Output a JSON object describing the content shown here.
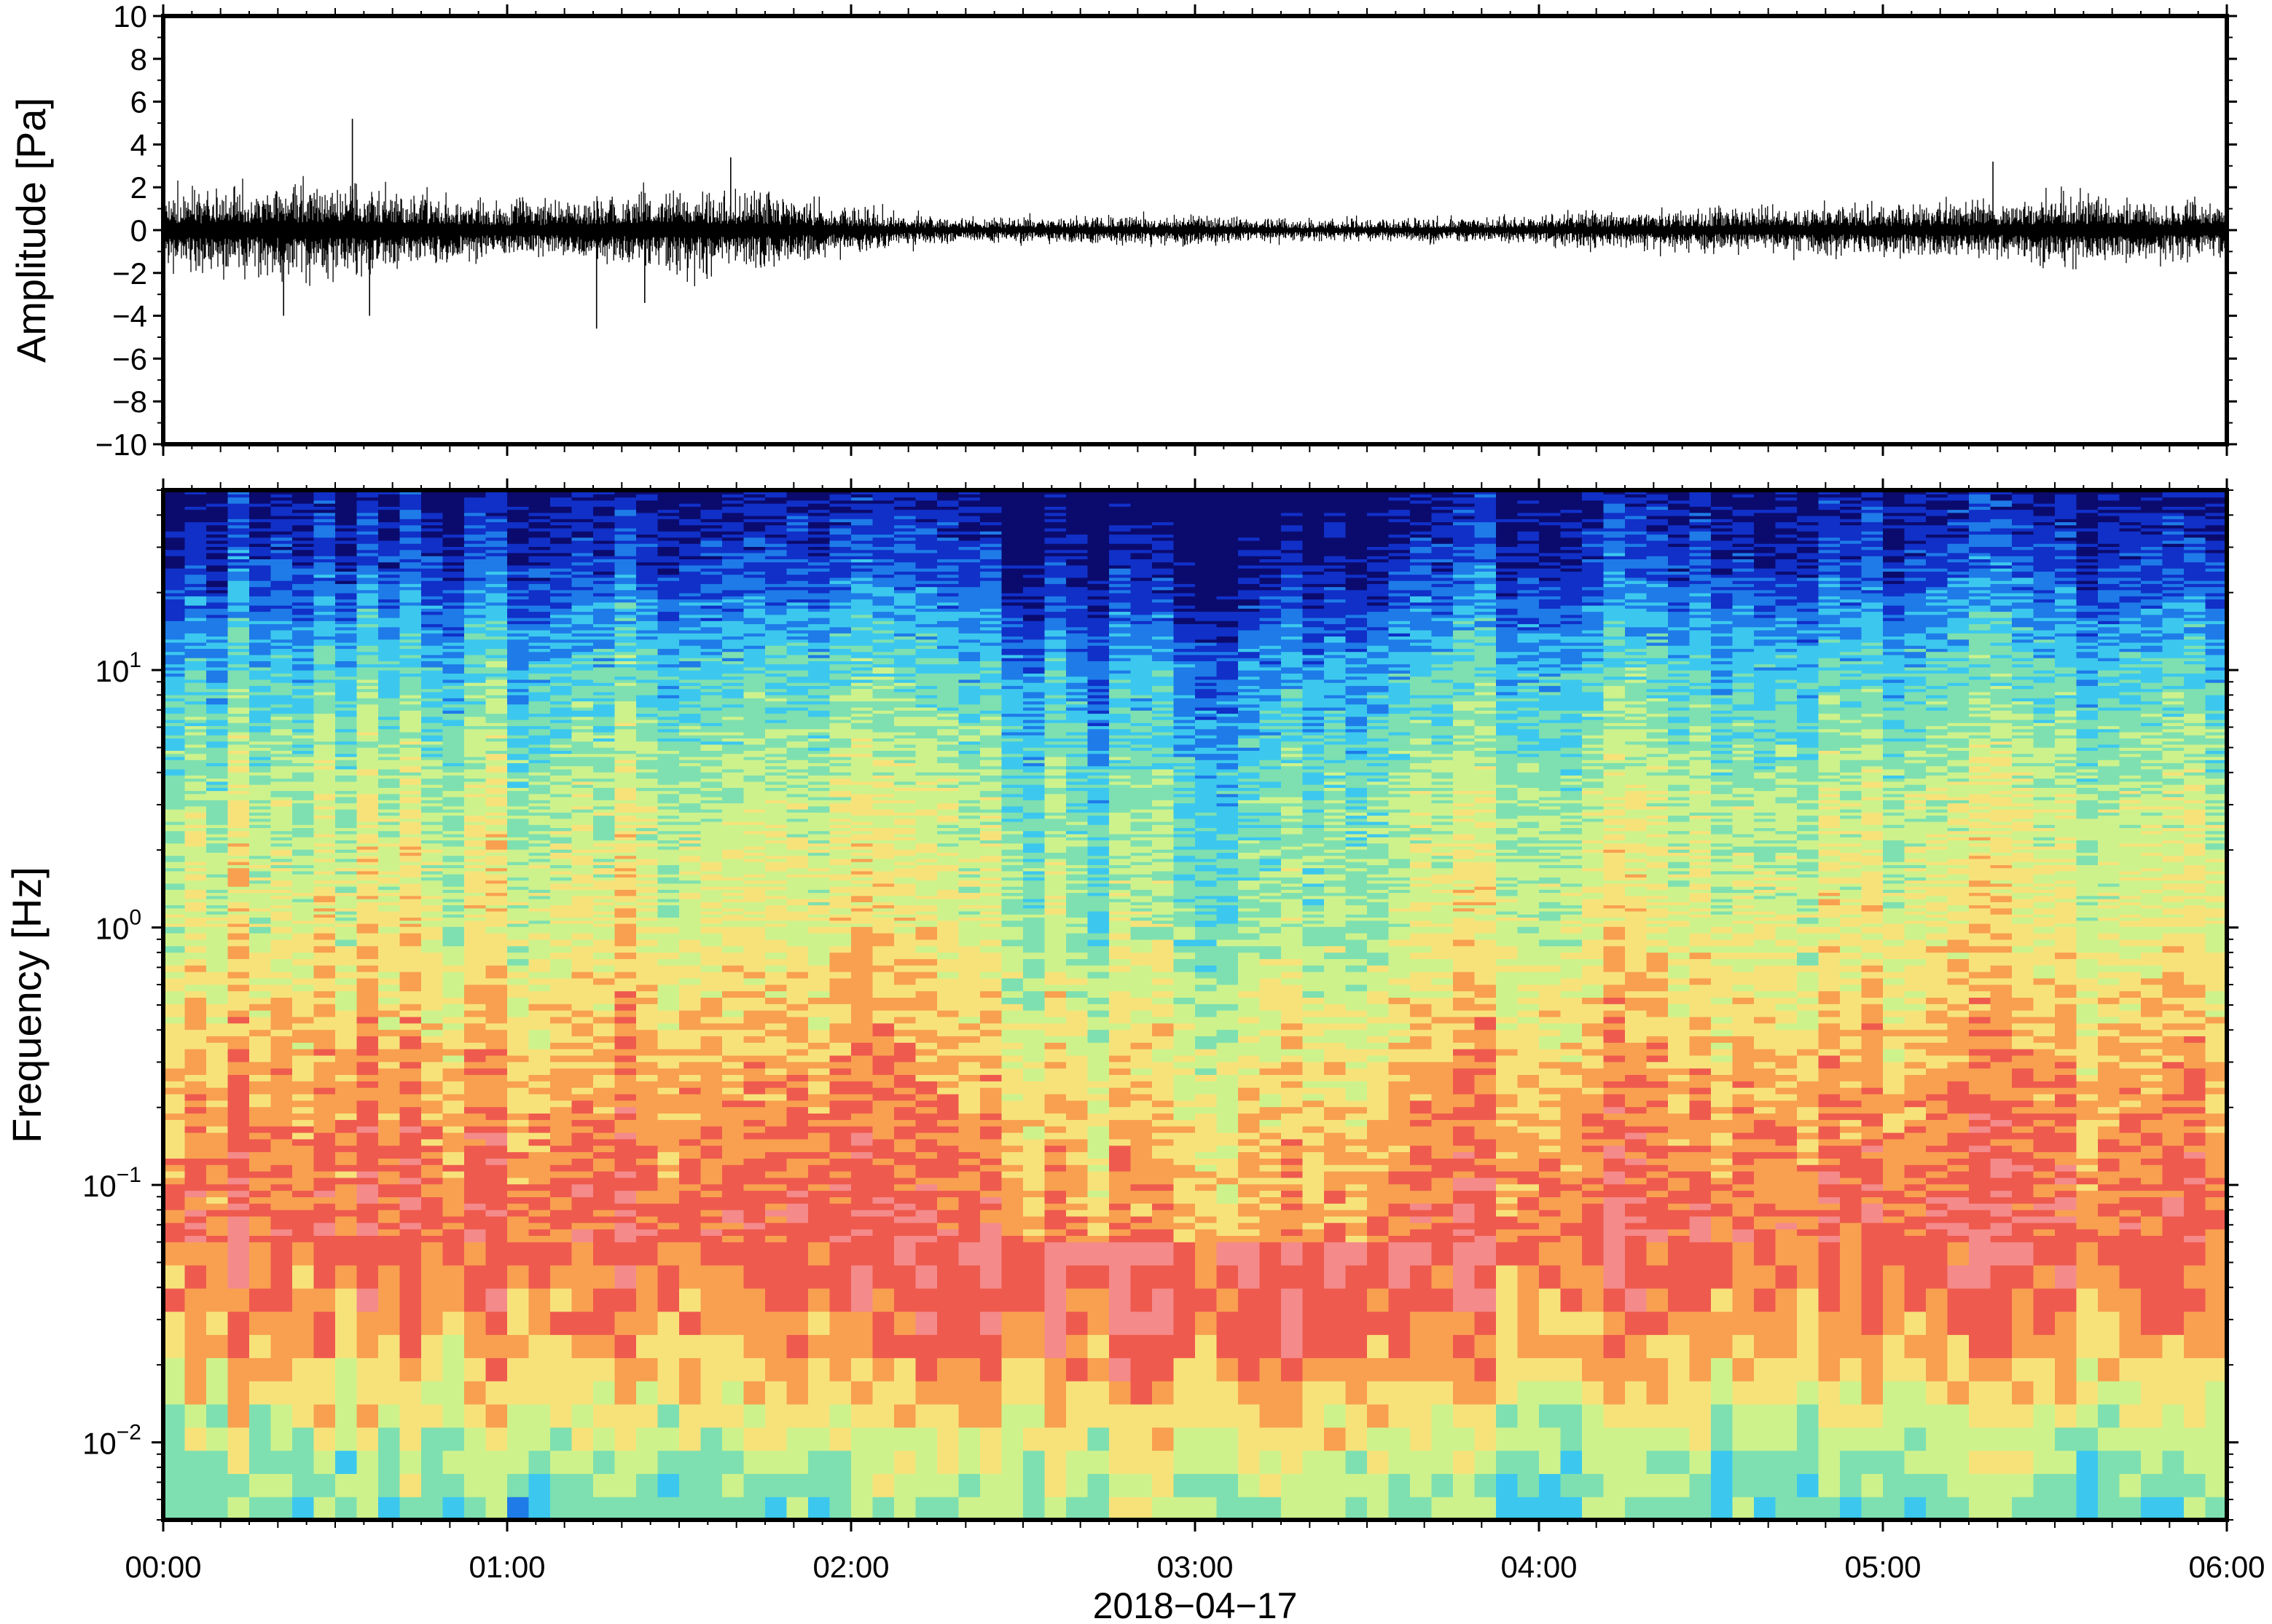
{
  "chart_data": [
    {
      "type": "line",
      "ylabel": "Amplitude [Pa]",
      "xlabel": "",
      "ylim": [
        -10,
        10
      ],
      "xlim": [
        "00:00",
        "06:00"
      ],
      "yticks": [
        -10,
        -8,
        -6,
        -4,
        -2,
        0,
        2,
        4,
        6,
        8,
        10
      ],
      "ytick_labels": [
        "−10",
        "−8",
        "−6",
        "−4",
        "−2",
        "0",
        "2",
        "4",
        "6",
        "8",
        "10"
      ],
      "grid": false,
      "series": [
        {
          "color": "#000000",
          "envelope_hours": [
            0.0,
            0.25,
            0.5,
            0.75,
            1.0,
            1.25,
            1.5,
            1.75,
            2.0,
            2.25,
            2.5,
            2.75,
            3.0,
            3.25,
            3.5,
            3.75,
            4.0,
            4.25,
            4.5,
            4.75,
            5.0,
            5.25,
            5.5,
            5.75,
            6.0
          ],
          "envelope_amplitude_pa": [
            1.5,
            1.6,
            1.8,
            1.4,
            1.0,
            1.3,
            1.6,
            1.4,
            0.9,
            0.5,
            0.5,
            0.55,
            0.6,
            0.4,
            0.4,
            0.45,
            0.6,
            0.75,
            0.8,
            0.9,
            0.95,
            1.05,
            1.3,
            1.2,
            1.1
          ],
          "spikes": [
            {
              "hour": 0.55,
              "value": 5.2
            },
            {
              "hour": 1.26,
              "value": -4.6
            },
            {
              "hour": 0.6,
              "value": -4.0
            },
            {
              "hour": 1.65,
              "value": 3.4
            },
            {
              "hour": 5.32,
              "value": 3.2
            },
            {
              "hour": 1.4,
              "value": -3.4
            },
            {
              "hour": 0.35,
              "value": -4.0
            }
          ]
        }
      ]
    },
    {
      "type": "heatmap",
      "ylabel": "Frequency [Hz]",
      "xlabel": "2018−04−17",
      "yscale": "log",
      "ylim": [
        0.005,
        50
      ],
      "yticks": [
        0.01,
        0.1,
        1,
        10
      ],
      "ytick_labels": [
        {
          "base": "10",
          "exp": "−2"
        },
        {
          "base": "10",
          "exp": "−1"
        },
        {
          "base": "10",
          "exp": "0"
        },
        {
          "base": "10",
          "exp": "1"
        }
      ],
      "xticks": [
        "00:00",
        "01:00",
        "02:00",
        "03:00",
        "04:00",
        "05:00",
        "06:00"
      ],
      "colormap": "jet",
      "colorbar": false,
      "colors": [
        "#0b0b6e",
        "#1030c8",
        "#1e7be8",
        "#3cc8ee",
        "#7ee0b0",
        "#cdf28c",
        "#f7e27a",
        "#f8a050",
        "#ef5a4e",
        "#f48a8a"
      ],
      "level_profile": [
        {
          "log10_hz": -2.3,
          "level": 0.42
        },
        {
          "log10_hz": -2.0,
          "level": 0.55
        },
        {
          "log10_hz": -1.6,
          "level": 0.78
        },
        {
          "log10_hz": -1.2,
          "level": 0.9
        },
        {
          "log10_hz": -0.8,
          "level": 0.82
        },
        {
          "log10_hz": -0.4,
          "level": 0.72
        },
        {
          "log10_hz": 0.0,
          "level": 0.62
        },
        {
          "log10_hz": 0.5,
          "level": 0.55
        },
        {
          "log10_hz": 1.0,
          "level": 0.38
        },
        {
          "log10_hz": 1.4,
          "level": 0.15
        },
        {
          "log10_hz": 1.7,
          "level": 0.03
        }
      ],
      "quiet_hours": [
        2.1,
        3.9
      ]
    }
  ]
}
